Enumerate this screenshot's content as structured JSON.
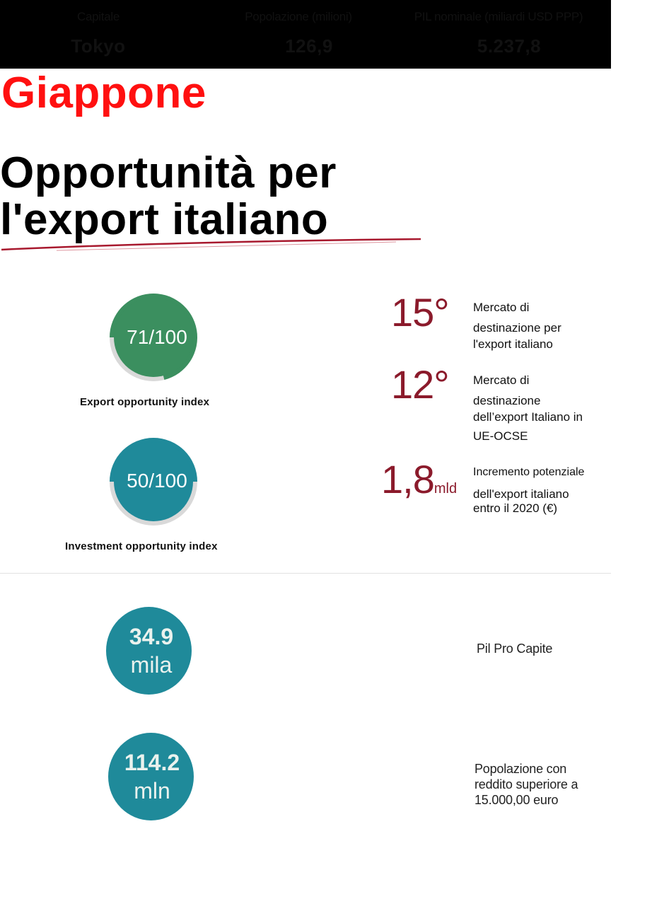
{
  "header": {
    "capital_label": "Capitale",
    "capital_value": "Tokyo",
    "population_label": "Popolazione (milioni)",
    "population_value": "126,9",
    "gdp_label": "PIL nominale (miliardi USD PPP)",
    "gdp_value": "5.237,8"
  },
  "country": "Giappone",
  "headline": {
    "line1": "Opportunità per",
    "line2": "l'export italiano"
  },
  "indices": [
    {
      "value_text": "71/100",
      "value": 71,
      "label": "Export opportunity index",
      "color": "#3b8f5f"
    },
    {
      "value_text": "50/100",
      "value": 50,
      "label": "Investment opportunity index",
      "color": "#1f8a9a"
    }
  ],
  "rankings": [
    {
      "value": "15°",
      "suffix": "",
      "lines": [
        "Mercato di",
        "destinazione per",
        "l'export italiano"
      ]
    },
    {
      "value": "12°",
      "suffix": "",
      "lines": [
        "Mercato di",
        "destinazione",
        "dell’export Italiano in",
        "UE-OCSE"
      ]
    },
    {
      "value": "1,8",
      "suffix": "mld",
      "lines": [
        "Incremento potenziale",
        "dell'export italiano",
        "entro il 2020 (€)"
      ]
    }
  ],
  "stats": [
    {
      "number": "34.9",
      "unit": "mila",
      "lines": [
        "Pil Pro Capite"
      ]
    },
    {
      "number": "114.2",
      "unit": "mln",
      "lines": [
        "Popolazione con",
        "reddito superiore a",
        "15.000,00 euro"
      ]
    }
  ],
  "colors": {
    "accent_red": "#ff1010",
    "rank_red": "#8b1a2b",
    "teal": "#1f8a9a",
    "green": "#3b8f5f",
    "ring_track": "#d9d9d9"
  }
}
